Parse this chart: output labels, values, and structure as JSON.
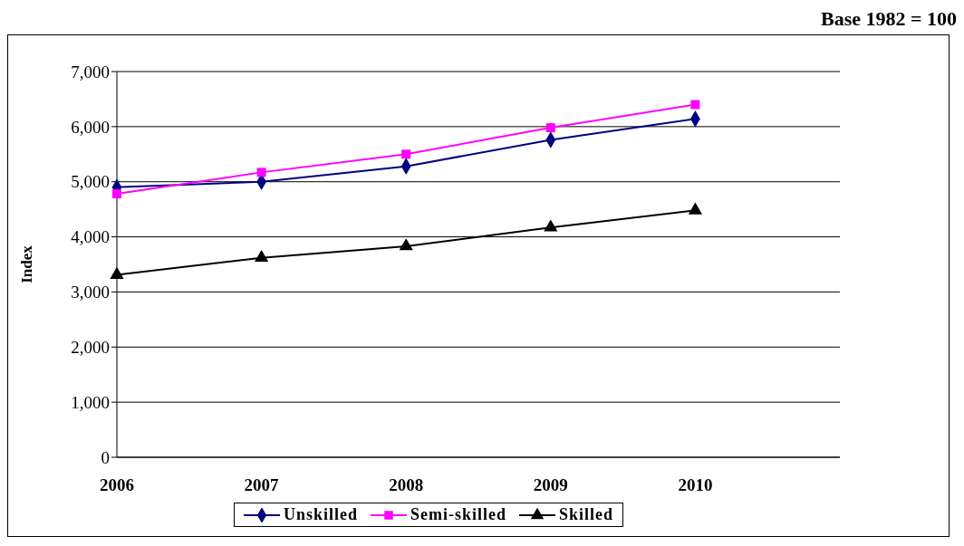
{
  "chart_data": {
    "type": "line",
    "ylabel": "Index",
    "annotations": [
      "Base 1982 = 100"
    ],
    "categories": [
      "2006",
      "2007",
      "2008",
      "2009",
      "2010",
      null
    ],
    "series": [
      {
        "name": "Unskilled",
        "color": "#000080",
        "marker": "diamond",
        "values": [
          4900,
          5000,
          5280,
          5760,
          6140,
          null
        ]
      },
      {
        "name": "Semi-skilled",
        "color": "#ff00ff",
        "marker": "square",
        "values": [
          4780,
          5170,
          5500,
          5980,
          6400,
          null
        ]
      },
      {
        "name": "Skilled",
        "color": "#000000",
        "marker": "triangle",
        "values": [
          3310,
          3620,
          3830,
          4170,
          4480,
          null
        ]
      }
    ],
    "ylim": [
      0,
      7000
    ],
    "yticks": [
      {
        "value": 0,
        "label": "0"
      },
      {
        "value": 1000,
        "label": "1,000"
      },
      {
        "value": 2000,
        "label": "2,000"
      },
      {
        "value": 3000,
        "label": "3,000"
      },
      {
        "value": 4000,
        "label": "4,000"
      },
      {
        "value": 5000,
        "label": "5,000"
      },
      {
        "value": 6000,
        "label": "6,000"
      },
      {
        "value": 7000,
        "label": "7,000"
      }
    ],
    "grid": "y",
    "legend": "bottom",
    "line_style": "solid"
  }
}
